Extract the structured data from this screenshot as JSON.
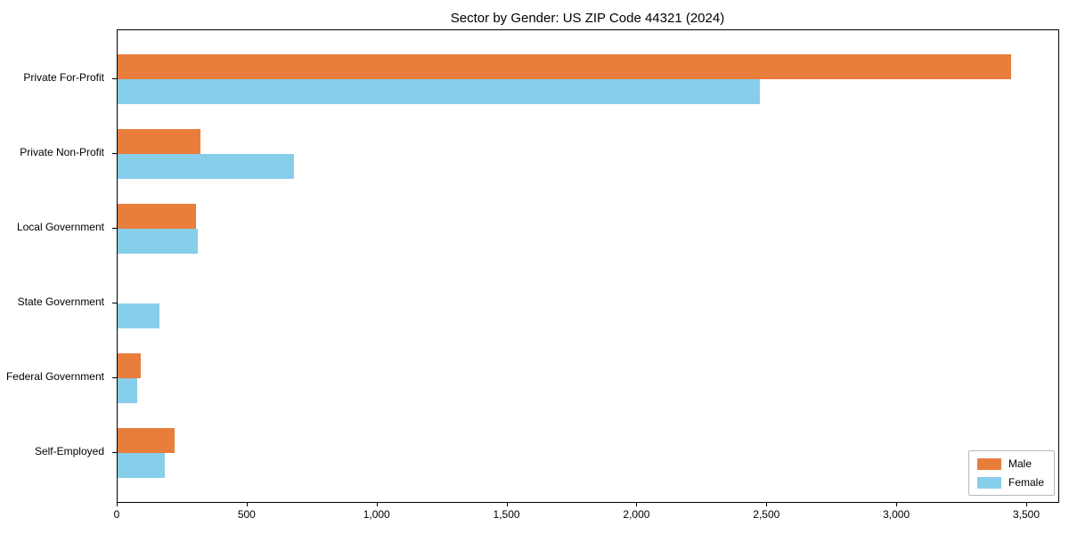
{
  "chart_data": {
    "type": "bar",
    "orientation": "horizontal",
    "title": "Sector by Gender: US ZIP Code 44321 (2024)",
    "categories": [
      "Private For-Profit",
      "Private Non-Profit",
      "Local Government",
      "State Government",
      "Federal Government",
      "Self-Employed"
    ],
    "series": [
      {
        "name": "Male",
        "color": "#e87d3c",
        "values": [
          3440,
          320,
          300,
          0,
          90,
          220
        ]
      },
      {
        "name": "Female",
        "color": "#87ceeb",
        "values": [
          2470,
          680,
          310,
          160,
          75,
          180
        ]
      }
    ],
    "xlabel": "",
    "ylabel": "",
    "xlim": [
      0,
      3620
    ],
    "xticks": [
      {
        "value": 0,
        "label": "0"
      },
      {
        "value": 500,
        "label": "500"
      },
      {
        "value": 1000,
        "label": "1,000"
      },
      {
        "value": 1500,
        "label": "1,500"
      },
      {
        "value": 2000,
        "label": "2,000"
      },
      {
        "value": 2500,
        "label": "2,500"
      },
      {
        "value": 3000,
        "label": "3,000"
      },
      {
        "value": 3500,
        "label": "3,500"
      }
    ],
    "grid": false,
    "legend_position": "lower right"
  }
}
